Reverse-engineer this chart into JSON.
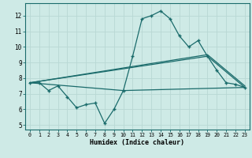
{
  "xlabel": "Humidex (Indice chaleur)",
  "bg_color": "#ceeae6",
  "line_color": "#1a6b6b",
  "grid_color": "#b8d8d4",
  "xlim": [
    -0.5,
    23.5
  ],
  "ylim": [
    4.7,
    12.8
  ],
  "yticks": [
    5,
    6,
    7,
    8,
    9,
    10,
    11,
    12
  ],
  "xticks": [
    0,
    1,
    2,
    3,
    4,
    5,
    6,
    7,
    8,
    9,
    10,
    11,
    12,
    13,
    14,
    15,
    16,
    17,
    18,
    19,
    20,
    21,
    22,
    23
  ],
  "series1_x": [
    0,
    1,
    2,
    3,
    4,
    5,
    6,
    7,
    8,
    9,
    10,
    11,
    12,
    13,
    14,
    15,
    16,
    17,
    18,
    19,
    20,
    21,
    22,
    23
  ],
  "series1_y": [
    7.7,
    7.7,
    7.2,
    7.5,
    6.8,
    6.1,
    6.3,
    6.4,
    5.1,
    6.0,
    7.2,
    9.4,
    11.8,
    12.0,
    12.3,
    11.8,
    10.7,
    10.0,
    10.4,
    9.4,
    8.5,
    7.7,
    7.6,
    7.4
  ],
  "series2_x": [
    0,
    19,
    23
  ],
  "series2_y": [
    7.7,
    9.5,
    7.5
  ],
  "series3_x": [
    0,
    19,
    23
  ],
  "series3_y": [
    7.7,
    9.4,
    7.4
  ],
  "series4_x": [
    0,
    10,
    23
  ],
  "series4_y": [
    7.7,
    7.2,
    7.4
  ]
}
